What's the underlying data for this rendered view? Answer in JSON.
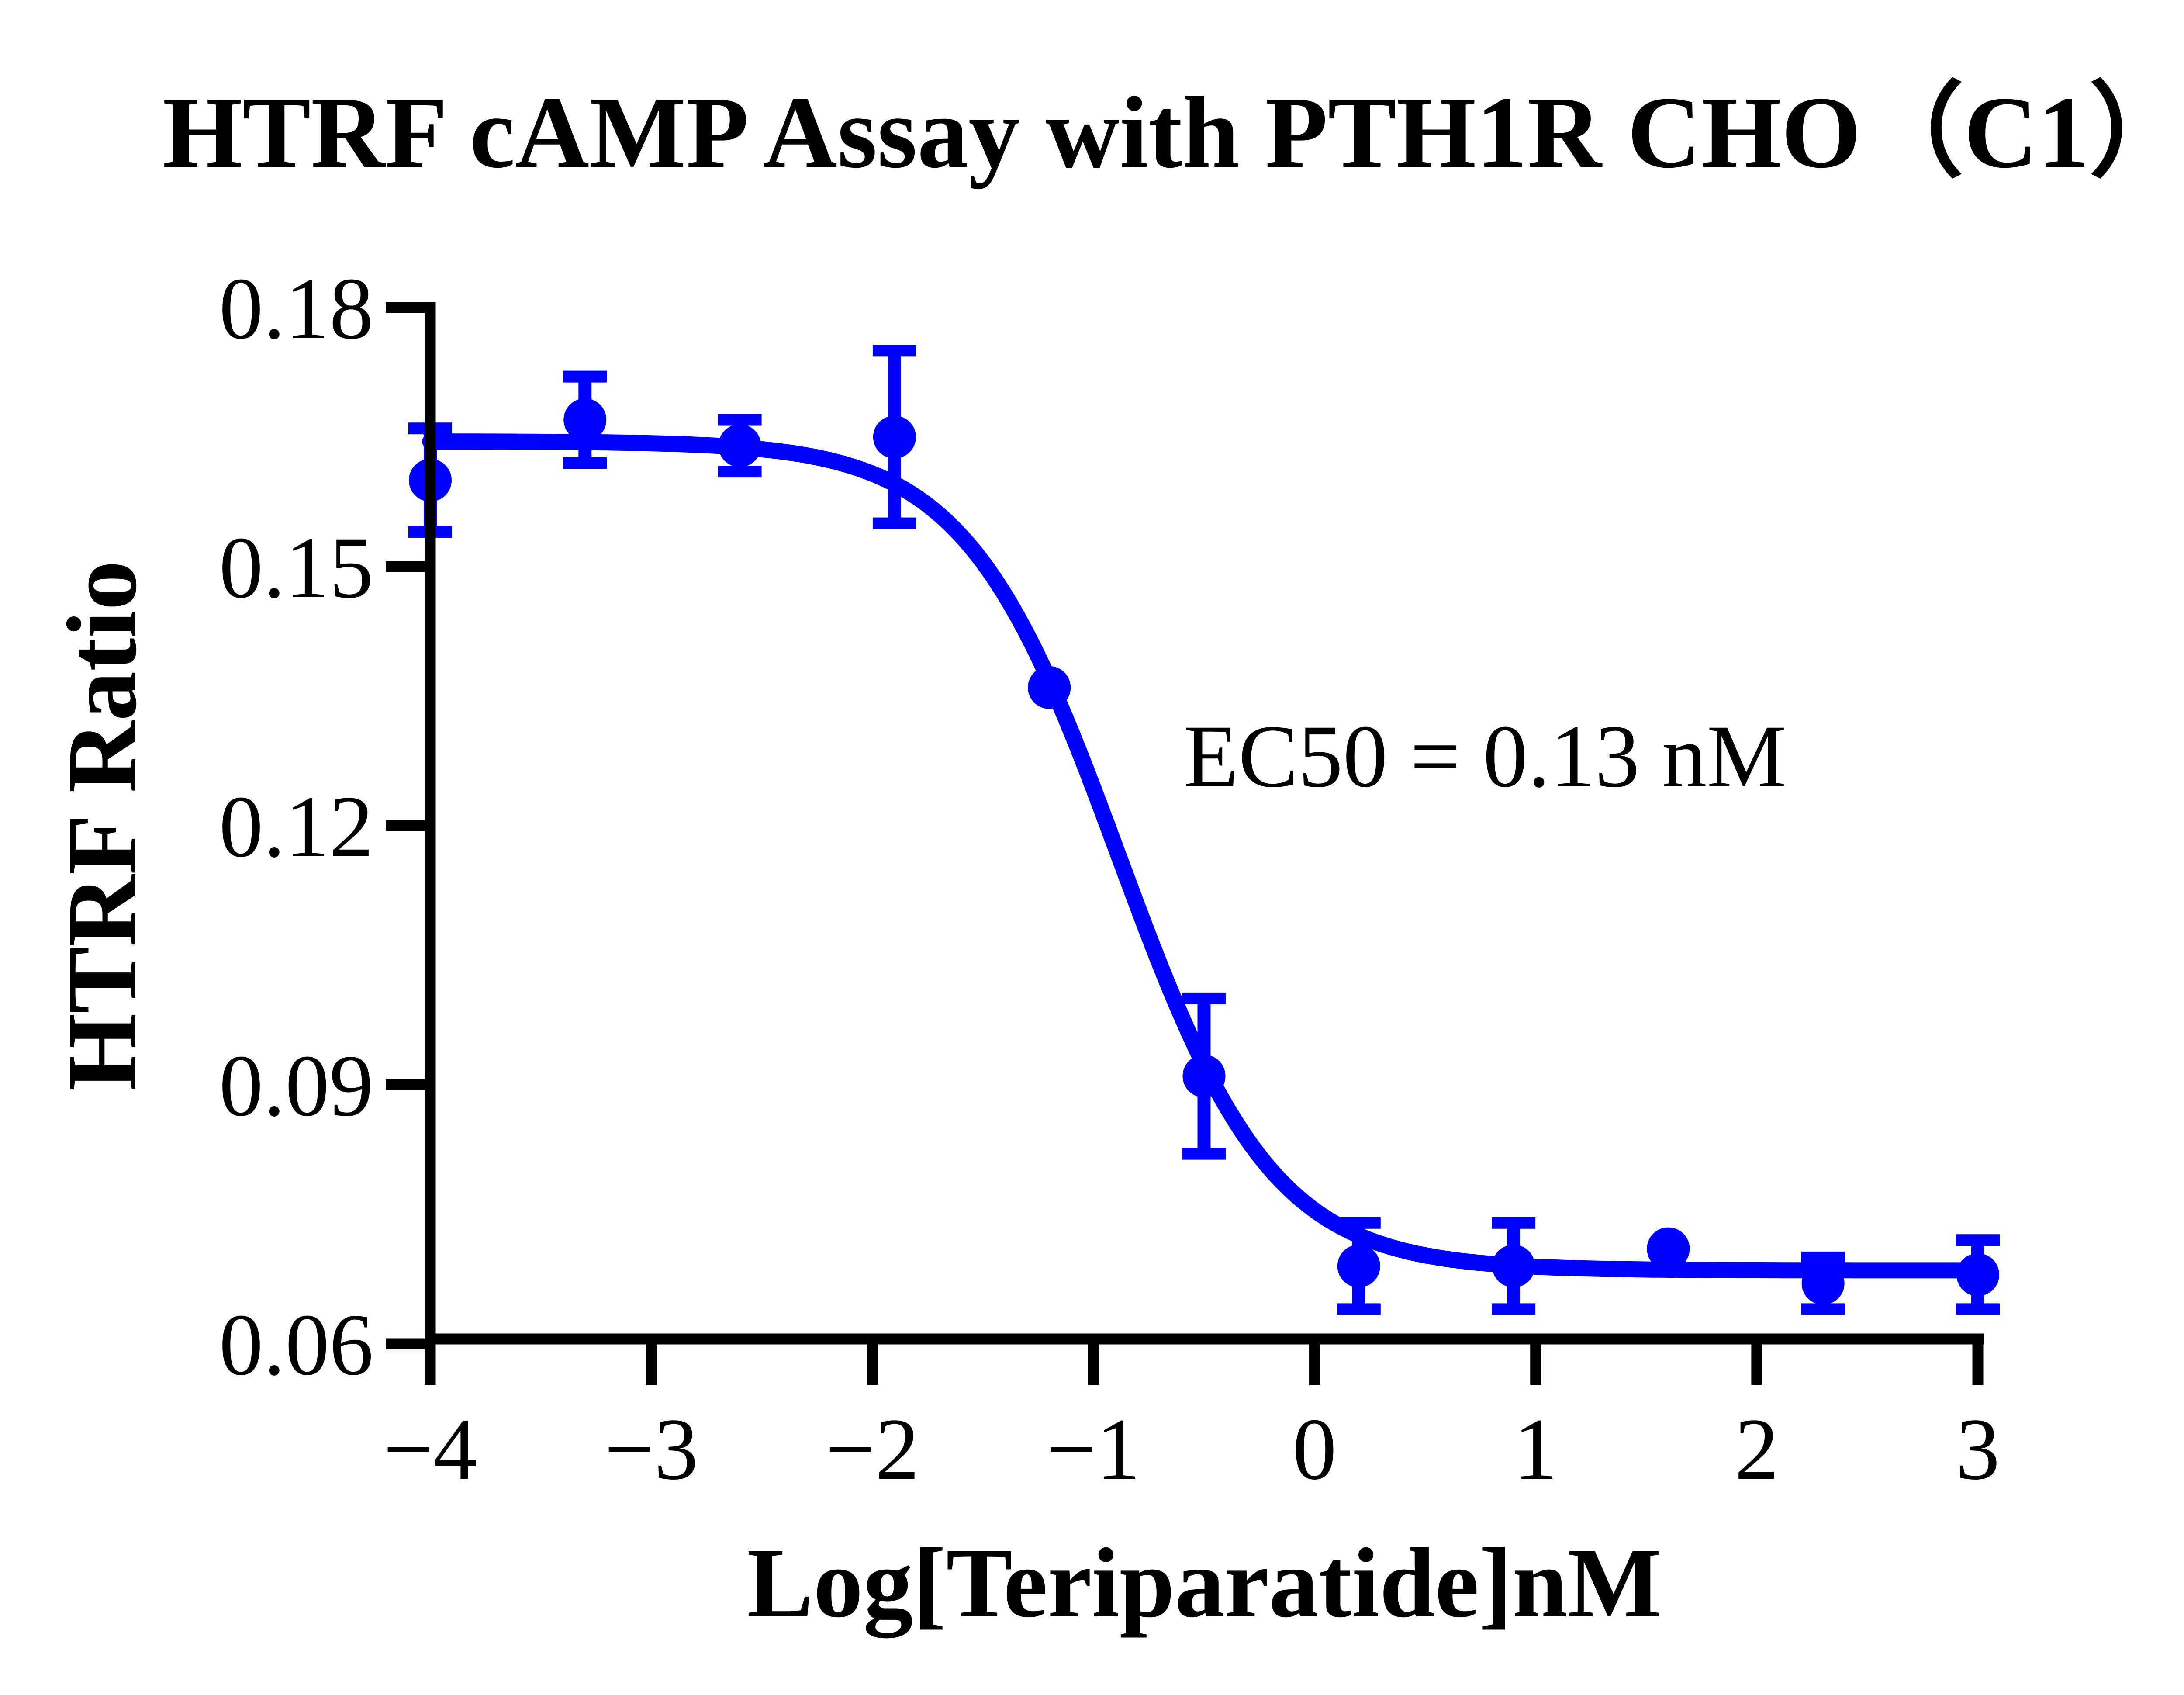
{
  "chart_data": {
    "type": "scatter",
    "title": "HTRF cAMP Assay with PTH1R CHO（C1）",
    "xlabel": "Log[Teriparatide]nM",
    "ylabel": "HTRF Ratio",
    "annotation": "EC50 = 0.13 nM",
    "ec50_nM": 0.13,
    "xlim": [
      -4,
      3
    ],
    "ylim": [
      0.06,
      0.18
    ],
    "x_ticks": [
      -4,
      -3,
      -2,
      -1,
      0,
      1,
      2,
      3
    ],
    "y_ticks": [
      0.06,
      0.09,
      0.12,
      0.15,
      0.18
    ],
    "grid": false,
    "legend": "none",
    "axis_color": "#000000",
    "background_color": "#ffffff",
    "series": [
      {
        "name": "Teriparatide",
        "color": "#0000fe",
        "marker": "circle",
        "x": [
          -4,
          -3.3,
          -2.6,
          -1.9,
          -1.2,
          -0.5,
          0.2,
          0.9,
          1.6,
          2.3,
          3
        ],
        "y": [
          0.16,
          0.167,
          0.164,
          0.165,
          0.136,
          0.091,
          0.069,
          0.069,
          0.071,
          0.067,
          0.068
        ],
        "err": [
          0.006,
          0.005,
          0.003,
          0.01,
          0,
          0.009,
          0.005,
          0.005,
          0,
          0.003,
          0.004
        ]
      }
    ],
    "fit_curve": {
      "model": "four-parameter-logistic",
      "top": 0.1645,
      "bottom": 0.0685,
      "logEC50": -0.886,
      "hill": 1.25
    }
  }
}
